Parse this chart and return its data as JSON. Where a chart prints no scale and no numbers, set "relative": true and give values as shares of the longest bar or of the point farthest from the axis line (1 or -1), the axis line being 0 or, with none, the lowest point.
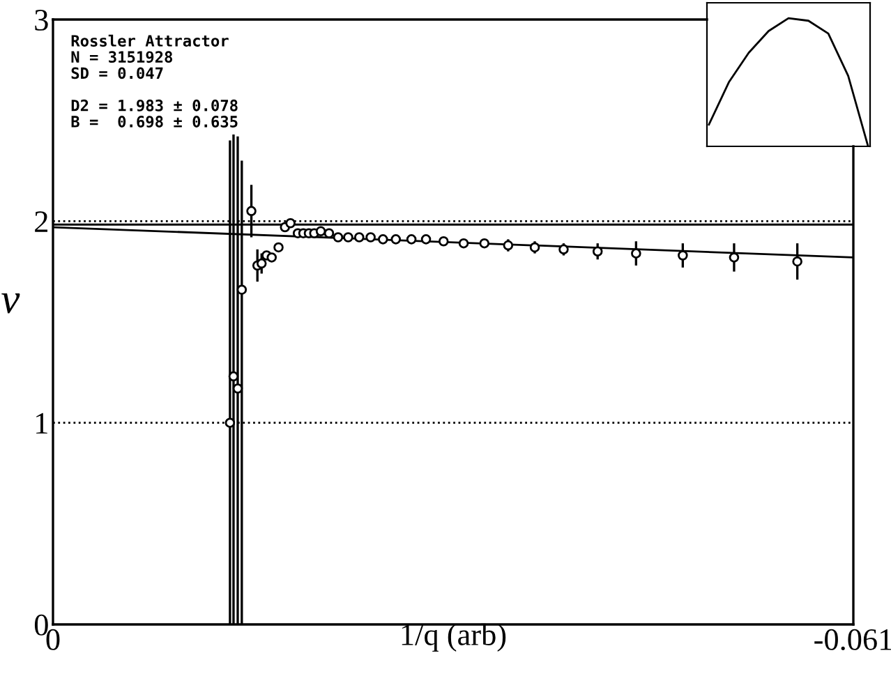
{
  "chart_data": [
    {
      "type": "scatter",
      "xlabel": "1/q (arb)",
      "ylabel": "ν",
      "xlim": [
        0,
        -0.061
      ],
      "ylim": [
        0,
        3
      ],
      "xticks": [
        0,
        -0.061
      ],
      "yticks": [
        0,
        1,
        2,
        3
      ],
      "annotations": [
        "Rossler Attractor\nN = 3151928\nSD = 0.047\n\nD2 = 1.983 ± 0.078\nB =  0.698 ± 0.635"
      ],
      "ref_lines": [
        {
          "axis": "y",
          "value": 1,
          "line_style": "dotted",
          "color": "#000000"
        },
        {
          "axis": "y",
          "value": 2,
          "line_style": "dotted",
          "color": "#000000"
        },
        {
          "axis": "y",
          "value": 1.983,
          "line_style": "solid",
          "color": "#000000"
        }
      ],
      "series": [
        {
          "marker": "circle",
          "color": "#000000",
          "x": [
            -0.01349,
            -0.01376,
            -0.01408,
            -0.01439,
            -0.01512,
            -0.01558,
            -0.0159,
            -0.01628,
            -0.01667,
            -0.01719,
            -0.01768,
            -0.0181,
            -0.01866,
            -0.01908,
            -0.0195,
            -0.01991,
            -0.02041,
            -0.02104,
            -0.02173,
            -0.0225,
            -0.02334,
            -0.02421,
            -0.02515,
            -0.02613,
            -0.02732,
            -0.02843,
            -0.02977,
            -0.0313,
            -0.03288,
            -0.03469,
            -0.03672,
            -0.03892,
            -0.04151,
            -0.04444,
            -0.048,
            -0.05191,
            -0.05673
          ],
          "values": [
            1.0,
            1.23,
            1.17,
            1.66,
            2.05,
            1.78,
            1.79,
            1.83,
            1.82,
            1.87,
            1.97,
            1.99,
            1.94,
            1.94,
            1.94,
            1.94,
            1.95,
            1.94,
            1.92,
            1.92,
            1.92,
            1.92,
            1.91,
            1.91,
            1.91,
            1.91,
            1.9,
            1.89,
            1.89,
            1.88,
            1.87,
            1.86,
            1.85,
            1.84,
            1.83,
            1.82,
            1.8
          ],
          "errors": [
            [
              0,
              2.4
            ],
            [
              0,
              2.43
            ],
            [
              0,
              2.42
            ],
            [
              0,
              2.3
            ],
            0.13,
            0.08,
            0.05,
            null,
            null,
            null,
            null,
            null,
            null,
            null,
            null,
            null,
            null,
            null,
            null,
            null,
            null,
            null,
            null,
            null,
            null,
            0.02,
            0.02,
            0.02,
            0.02,
            0.03,
            0.03,
            0.03,
            0.04,
            0.06,
            0.06,
            0.07,
            0.09
          ]
        },
        {
          "type": "line",
          "marker": "none",
          "color": "#000000",
          "x": [
            0,
            -0.061
          ],
          "values": [
            1.97,
            1.82
          ]
        }
      ]
    },
    {
      "type": "line",
      "relative": true,
      "categories": [
        null,
        null,
        null,
        null,
        null,
        null,
        null,
        null,
        null
      ],
      "series": [
        {
          "color": "#000000",
          "values": [
            0.17,
            0.5,
            0.73,
            0.9,
            1,
            0.98,
            0.88,
            0.55,
            0
          ]
        }
      ]
    }
  ]
}
